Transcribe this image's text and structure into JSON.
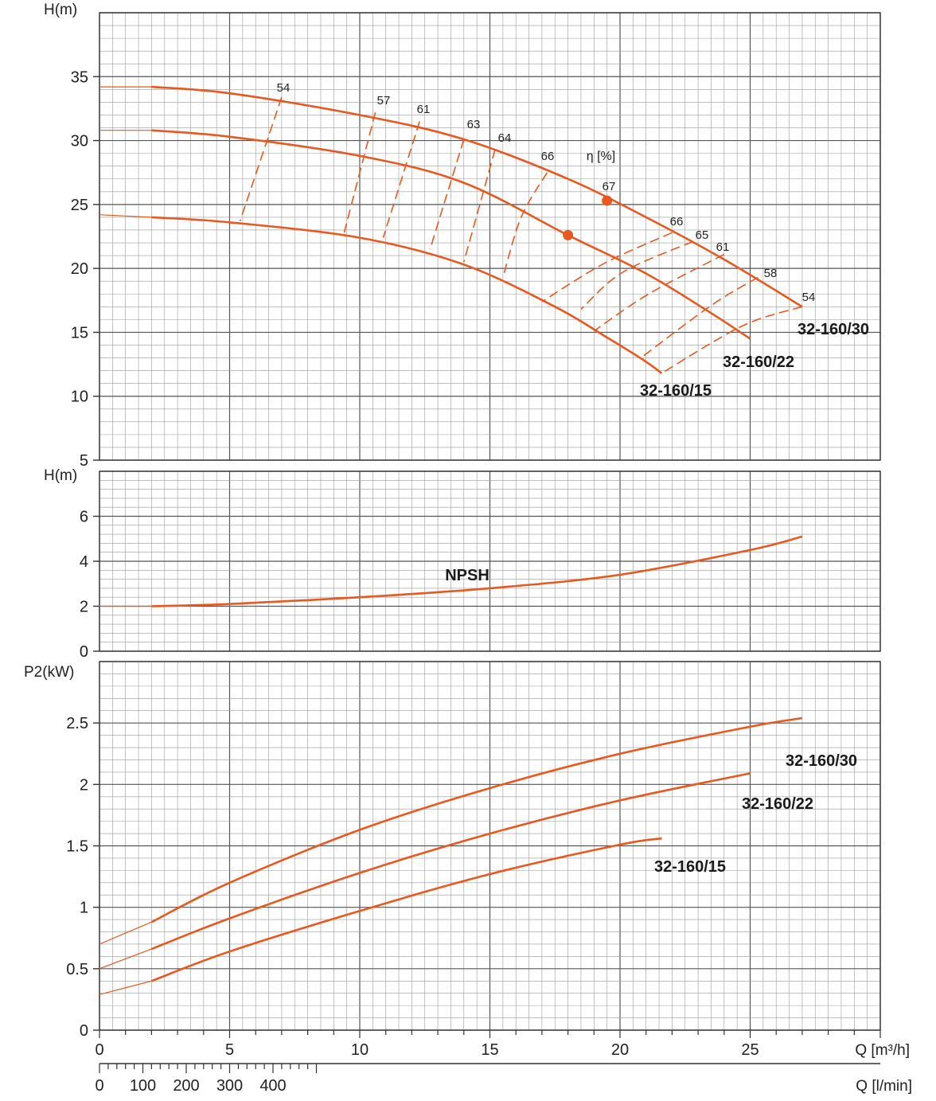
{
  "accent_color": "#e8581f",
  "grid_color": "#9a9a9a",
  "x_axis": {
    "q_m3h_ticks": [
      "0",
      "5",
      "10",
      "15",
      "20",
      "25"
    ],
    "q_m3h_label": "Q [m³/h]",
    "q_lmin_ticks": [
      "0",
      "100",
      "200",
      "300",
      "400"
    ],
    "q_lmin_label": "Q [l/min]",
    "range_m3h": [
      0,
      30
    ]
  },
  "chart_data": [
    {
      "type": "line",
      "ylabel": "H(m)",
      "ylim": [
        5,
        40
      ],
      "y_ticks": [
        "5",
        "10",
        "15",
        "20",
        "25",
        "30",
        "35"
      ],
      "grid": true,
      "series": [
        {
          "name": "32-160/30",
          "x": [
            0,
            2,
            5,
            10,
            14,
            18,
            21,
            24,
            27
          ],
          "values": [
            34.2,
            34.2,
            33.7,
            32.0,
            30.1,
            27.0,
            24.0,
            20.7,
            17.0
          ]
        },
        {
          "name": "32-160/22",
          "x": [
            0,
            2,
            5,
            10,
            14,
            18,
            21,
            23.5,
            25
          ],
          "values": [
            30.8,
            30.8,
            30.3,
            28.8,
            26.7,
            22.6,
            19.6,
            16.5,
            14.5
          ]
        },
        {
          "name": "32-160/15",
          "x": [
            0,
            2,
            5,
            10,
            14,
            17.5,
            19.5,
            21,
            21.6
          ],
          "values": [
            24.2,
            24.0,
            23.6,
            22.4,
            20.3,
            17.0,
            14.6,
            12.7,
            11.8
          ]
        }
      ],
      "efficiency_labels": [
        "54",
        "57",
        "61",
        "63",
        "64",
        "66",
        "67",
        "66",
        "65",
        "61",
        "58",
        "54"
      ],
      "eta_label": "η [%]",
      "best_efficiency_points": [
        {
          "x": 19.5,
          "y": 25.3
        },
        {
          "x": 18.0,
          "y": 22.6
        }
      ],
      "efficiency_lines": [
        {
          "label": "54",
          "points": [
            [
              7,
              33.4
            ],
            [
              5.4,
              23.7
            ]
          ]
        },
        {
          "label": "57",
          "points": [
            [
              10.6,
              32.2
            ],
            [
              9.4,
              22.8
            ]
          ]
        },
        {
          "label": "61",
          "points": [
            [
              12.3,
              31.5
            ],
            [
              10.9,
              22.4
            ]
          ]
        },
        {
          "label": "63",
          "points": [
            [
              14.0,
              30.1
            ],
            [
              12.7,
              21.5
            ]
          ]
        },
        {
          "label": "64",
          "points": [
            [
              15.2,
              29.3
            ],
            [
              14.0,
              20.5
            ]
          ]
        },
        {
          "label": "66",
          "points": [
            [
              17.2,
              27.5
            ],
            [
              16.2,
              24.0
            ],
            [
              15.5,
              19.3
            ]
          ]
        },
        {
          "label": "66",
          "points": [
            [
              22.0,
              22.8
            ],
            [
              19.4,
              20.4
            ],
            [
              17.0,
              17.4
            ]
          ]
        },
        {
          "label": "65",
          "points": [
            [
              22.8,
              22.1
            ],
            [
              20.1,
              19.7
            ],
            [
              18.5,
              16.8
            ]
          ]
        },
        {
          "label": "61",
          "points": [
            [
              24.0,
              21.1
            ],
            [
              21.1,
              18.0
            ],
            [
              19.0,
              15.1
            ]
          ]
        },
        {
          "label": "58",
          "points": [
            [
              25.3,
              19.3
            ],
            [
              23.5,
              17.1
            ],
            [
              20.8,
              13.0
            ]
          ]
        },
        {
          "label": "54",
          "points": [
            [
              27.0,
              17.0
            ],
            [
              24.7,
              15.5
            ],
            [
              21.6,
              11.8
            ]
          ]
        }
      ]
    },
    {
      "type": "line",
      "ylabel": "H(m)",
      "ylim": [
        0,
        8
      ],
      "y_ticks": [
        "0",
        "2",
        "4",
        "6"
      ],
      "grid": true,
      "series": [
        {
          "name": "NPSH",
          "x": [
            0,
            2,
            5,
            10,
            15,
            20,
            25,
            27
          ],
          "values": [
            2.0,
            2.0,
            2.1,
            2.4,
            2.8,
            3.4,
            4.5,
            5.1
          ]
        }
      ]
    },
    {
      "type": "line",
      "ylabel": "P2(kW)",
      "ylim": [
        0,
        3
      ],
      "y_ticks": [
        "0",
        "0.5",
        "1",
        "1.5",
        "2",
        "2.5"
      ],
      "grid": true,
      "series": [
        {
          "name": "32-160/30",
          "x": [
            0,
            2,
            5,
            10,
            15,
            20,
            25,
            27
          ],
          "values": [
            0.7,
            0.88,
            1.2,
            1.63,
            1.97,
            2.25,
            2.47,
            2.54
          ]
        },
        {
          "name": "32-160/22",
          "x": [
            0,
            2,
            5,
            10,
            15,
            20,
            25
          ],
          "values": [
            0.5,
            0.66,
            0.91,
            1.28,
            1.6,
            1.87,
            2.09
          ]
        },
        {
          "name": "32-160/15",
          "x": [
            0,
            2,
            5,
            10,
            15,
            20,
            21.6
          ],
          "values": [
            0.29,
            0.4,
            0.64,
            0.97,
            1.27,
            1.51,
            1.56
          ]
        }
      ]
    }
  ]
}
